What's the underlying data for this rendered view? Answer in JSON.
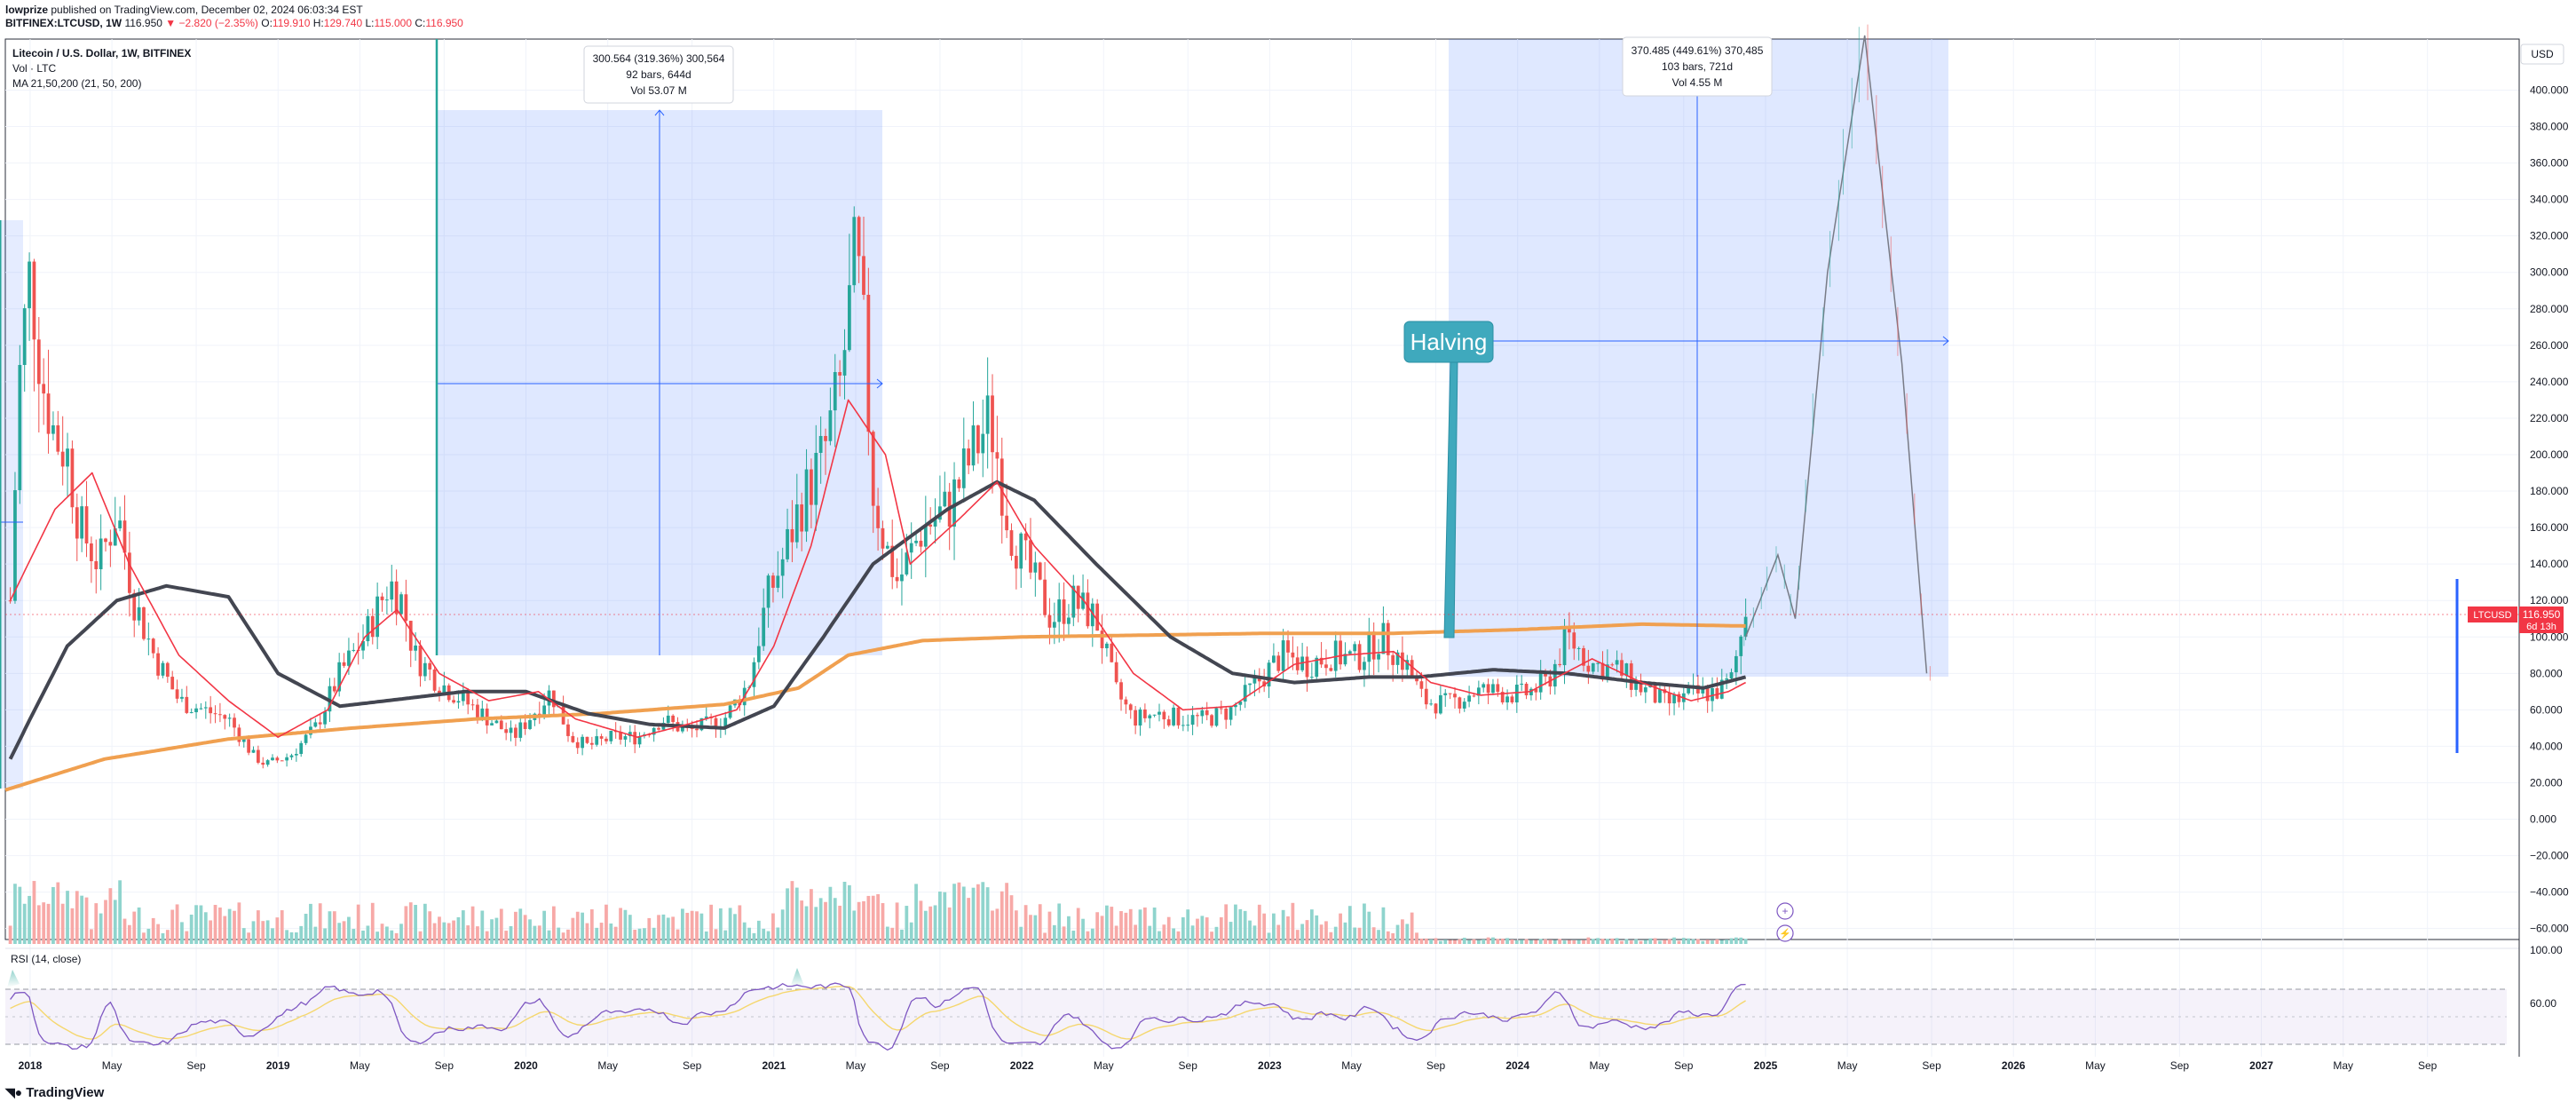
{
  "header": {
    "publisher": "lowprize",
    "published_text": "published on TradingView.com, December 02, 2024 06:03:34 EST",
    "symbol": "BITFINEX:LTCUSD, 1W",
    "last": "116.950",
    "change": "▼ −2.820 (−2.35%)",
    "o_label": "O:",
    "o": "119.910",
    "h_label": "H:",
    "h": "129.740",
    "l_label": "L:",
    "l": "115.000",
    "c_label": "C:",
    "c": "116.950"
  },
  "legend": {
    "title": "Litecoin / U.S. Dollar, 1W, BITFINEX",
    "vol": "Vol · LTC",
    "ma": "MA 21,50,200 (21, 50, 200)",
    "rsi": "RSI (14, close)"
  },
  "price_tag": {
    "symbol": "LTCUSD",
    "value": "116.950",
    "countdown": "6d 13h"
  },
  "currency": "USD",
  "annotations": {
    "measure1": {
      "line1": "300.564 (319.36%) 300,564",
      "line2": "92 bars, 644d",
      "line3": "Vol 53.07 M"
    },
    "measure2": {
      "line1": "370.485 (449.61%) 370,485",
      "line2": "103 bars, 721d",
      "line3": "Vol 4.55 M"
    },
    "halving": "Halving"
  },
  "footer": {
    "brand": "TradingView"
  },
  "colors": {
    "up": "#26a69a",
    "down": "#ef5350",
    "vol_up": "#8fd4cd",
    "vol_down": "#f7a9a7",
    "ma21": "#f23645",
    "ma50": "#434651",
    "ma200": "#f0a050",
    "measure": "#2962ff",
    "halving": "#3fa9bd",
    "rsi": "#7e57c2",
    "rsi_ma": "#f5d76e"
  },
  "chart_data": {
    "type": "candlestick",
    "y_axis_ticks": [
      "400.000",
      "380.000",
      "360.000",
      "340.000",
      "320.000",
      "300.000",
      "280.000",
      "260.000",
      "240.000",
      "220.000",
      "200.000",
      "180.000",
      "160.000",
      "140.000",
      "120.000",
      "100.000",
      "80.000",
      "60.000",
      "40.000",
      "20.000",
      "0.000",
      "−20.000",
      "−40.000",
      "−60.000"
    ],
    "ylim": [
      -66,
      428
    ],
    "rsi_ticks": [
      "100.00",
      "60.00"
    ],
    "x_ticks": [
      "2018",
      "May",
      "Sep",
      "2019",
      "May",
      "Sep",
      "2020",
      "May",
      "Sep",
      "2021",
      "May",
      "Sep",
      "2022",
      "May",
      "Sep",
      "2023",
      "May",
      "Sep",
      "2024",
      "May",
      "Sep",
      "2025",
      "May",
      "Sep",
      "2026",
      "May",
      "Sep",
      "2027",
      "May",
      "Sep"
    ],
    "x_tick_years": [
      2018.0,
      2018.33,
      2018.67,
      2019.0,
      2019.33,
      2019.67,
      2020.0,
      2020.33,
      2020.67,
      2021.0,
      2021.33,
      2021.67,
      2022.0,
      2022.33,
      2022.67,
      2023.0,
      2023.33,
      2023.67,
      2024.0,
      2024.33,
      2024.67,
      2025.0,
      2025.33,
      2025.67,
      2026.0,
      2026.33,
      2026.67,
      2027.0,
      2027.33,
      2027.67
    ],
    "xlim": [
      2017.9,
      2028.04
    ],
    "price_anchors": [
      [
        2017.92,
        120
      ],
      [
        2017.96,
        250
      ],
      [
        2018.0,
        300
      ],
      [
        2018.05,
        240
      ],
      [
        2018.1,
        210
      ],
      [
        2018.15,
        200
      ],
      [
        2018.2,
        160
      ],
      [
        2018.28,
        140
      ],
      [
        2018.35,
        170
      ],
      [
        2018.42,
        120
      ],
      [
        2018.5,
        90
      ],
      [
        2018.6,
        65
      ],
      [
        2018.7,
        60
      ],
      [
        2018.8,
        55
      ],
      [
        2018.9,
        35
      ],
      [
        2018.95,
        30
      ],
      [
        2019.05,
        35
      ],
      [
        2019.15,
        50
      ],
      [
        2019.25,
        80
      ],
      [
        2019.35,
        100
      ],
      [
        2019.45,
        130
      ],
      [
        2019.5,
        120
      ],
      [
        2019.55,
        90
      ],
      [
        2019.65,
        75
      ],
      [
        2019.8,
        60
      ],
      [
        2019.95,
        45
      ],
      [
        2020.1,
        70
      ],
      [
        2020.18,
        45
      ],
      [
        2020.25,
        40
      ],
      [
        2020.35,
        45
      ],
      [
        2020.45,
        45
      ],
      [
        2020.55,
        55
      ],
      [
        2020.65,
        48
      ],
      [
        2020.8,
        55
      ],
      [
        2020.9,
        75
      ],
      [
        2020.97,
        120
      ],
      [
        2021.03,
        140
      ],
      [
        2021.1,
        170
      ],
      [
        2021.2,
        200
      ],
      [
        2021.27,
        240
      ],
      [
        2021.33,
        310
      ],
      [
        2021.36,
        270
      ],
      [
        2021.4,
        180
      ],
      [
        2021.45,
        150
      ],
      [
        2021.5,
        130
      ],
      [
        2021.6,
        160
      ],
      [
        2021.7,
        170
      ],
      [
        2021.8,
        200
      ],
      [
        2021.87,
        220
      ],
      [
        2021.9,
        200
      ],
      [
        2021.95,
        160
      ],
      [
        2022.05,
        130
      ],
      [
        2022.12,
        110
      ],
      [
        2022.2,
        120
      ],
      [
        2022.3,
        110
      ],
      [
        2022.38,
        70
      ],
      [
        2022.45,
        55
      ],
      [
        2022.55,
        58
      ],
      [
        2022.65,
        55
      ],
      [
        2022.75,
        55
      ],
      [
        2022.85,
        60
      ],
      [
        2022.95,
        75
      ],
      [
        2023.05,
        90
      ],
      [
        2023.15,
        85
      ],
      [
        2023.25,
        90
      ],
      [
        2023.35,
        88
      ],
      [
        2023.45,
        100
      ],
      [
        2023.55,
        85
      ],
      [
        2023.62,
        65
      ],
      [
        2023.72,
        63
      ],
      [
        2023.82,
        70
      ],
      [
        2023.92,
        70
      ],
      [
        2024.02,
        68
      ],
      [
        2024.12,
        75
      ],
      [
        2024.2,
        100
      ],
      [
        2024.3,
        85
      ],
      [
        2024.4,
        82
      ],
      [
        2024.5,
        72
      ],
      [
        2024.6,
        63
      ],
      [
        2024.7,
        68
      ],
      [
        2024.8,
        70
      ],
      [
        2024.86,
        75
      ],
      [
        2024.9,
        100
      ],
      [
        2024.92,
        117
      ]
    ],
    "ma200_anchors": [
      [
        2017.9,
        16
      ],
      [
        2018.3,
        33
      ],
      [
        2018.8,
        44
      ],
      [
        2019.3,
        50
      ],
      [
        2019.8,
        55
      ],
      [
        2020.3,
        58
      ],
      [
        2020.8,
        63
      ],
      [
        2021.1,
        72
      ],
      [
        2021.3,
        90
      ],
      [
        2021.6,
        98
      ],
      [
        2022.0,
        100
      ],
      [
        2022.5,
        101
      ],
      [
        2023.0,
        102
      ],
      [
        2023.5,
        102
      ],
      [
        2024.0,
        104
      ],
      [
        2024.5,
        107
      ],
      [
        2024.92,
        106
      ]
    ],
    "ma50_anchors": [
      [
        2017.92,
        33
      ],
      [
        2018.0,
        55
      ],
      [
        2018.15,
        95
      ],
      [
        2018.35,
        120
      ],
      [
        2018.55,
        128
      ],
      [
        2018.8,
        122
      ],
      [
        2019.0,
        80
      ],
      [
        2019.25,
        62
      ],
      [
        2019.5,
        66
      ],
      [
        2019.75,
        70
      ],
      [
        2020.0,
        70
      ],
      [
        2020.25,
        58
      ],
      [
        2020.5,
        52
      ],
      [
        2020.8,
        50
      ],
      [
        2021.0,
        62
      ],
      [
        2021.2,
        100
      ],
      [
        2021.4,
        140
      ],
      [
        2021.7,
        170
      ],
      [
        2021.9,
        185
      ],
      [
        2022.05,
        175
      ],
      [
        2022.3,
        140
      ],
      [
        2022.6,
        100
      ],
      [
        2022.85,
        80
      ],
      [
        2023.1,
        75
      ],
      [
        2023.4,
        78
      ],
      [
        2023.6,
        78
      ],
      [
        2023.9,
        82
      ],
      [
        2024.2,
        80
      ],
      [
        2024.5,
        75
      ],
      [
        2024.75,
        72
      ],
      [
        2024.92,
        78
      ]
    ],
    "ma21_anchors": [
      [
        2017.92,
        120
      ],
      [
        2018.1,
        170
      ],
      [
        2018.25,
        190
      ],
      [
        2018.4,
        140
      ],
      [
        2018.6,
        90
      ],
      [
        2018.8,
        65
      ],
      [
        2019.0,
        45
      ],
      [
        2019.2,
        60
      ],
      [
        2019.35,
        100
      ],
      [
        2019.48,
        115
      ],
      [
        2019.65,
        80
      ],
      [
        2019.85,
        65
      ],
      [
        2020.05,
        70
      ],
      [
        2020.2,
        55
      ],
      [
        2020.45,
        45
      ],
      [
        2020.65,
        52
      ],
      [
        2020.85,
        60
      ],
      [
        2021.0,
        95
      ],
      [
        2021.15,
        150
      ],
      [
        2021.3,
        230
      ],
      [
        2021.45,
        200
      ],
      [
        2021.55,
        140
      ],
      [
        2021.75,
        165
      ],
      [
        2021.9,
        185
      ],
      [
        2022.05,
        150
      ],
      [
        2022.25,
        120
      ],
      [
        2022.45,
        80
      ],
      [
        2022.65,
        60
      ],
      [
        2022.85,
        62
      ],
      [
        2023.1,
        85
      ],
      [
        2023.3,
        90
      ],
      [
        2023.5,
        92
      ],
      [
        2023.65,
        75
      ],
      [
        2023.85,
        68
      ],
      [
        2024.05,
        70
      ],
      [
        2024.3,
        88
      ],
      [
        2024.5,
        75
      ],
      [
        2024.7,
        65
      ],
      [
        2024.85,
        70
      ],
      [
        2024.92,
        75
      ]
    ],
    "projection_anchors": [
      [
        2024.92,
        100
      ],
      [
        2025.05,
        145
      ],
      [
        2025.12,
        110
      ],
      [
        2025.25,
        300
      ],
      [
        2025.4,
        430
      ],
      [
        2025.55,
        250
      ],
      [
        2025.65,
        80
      ]
    ]
  }
}
